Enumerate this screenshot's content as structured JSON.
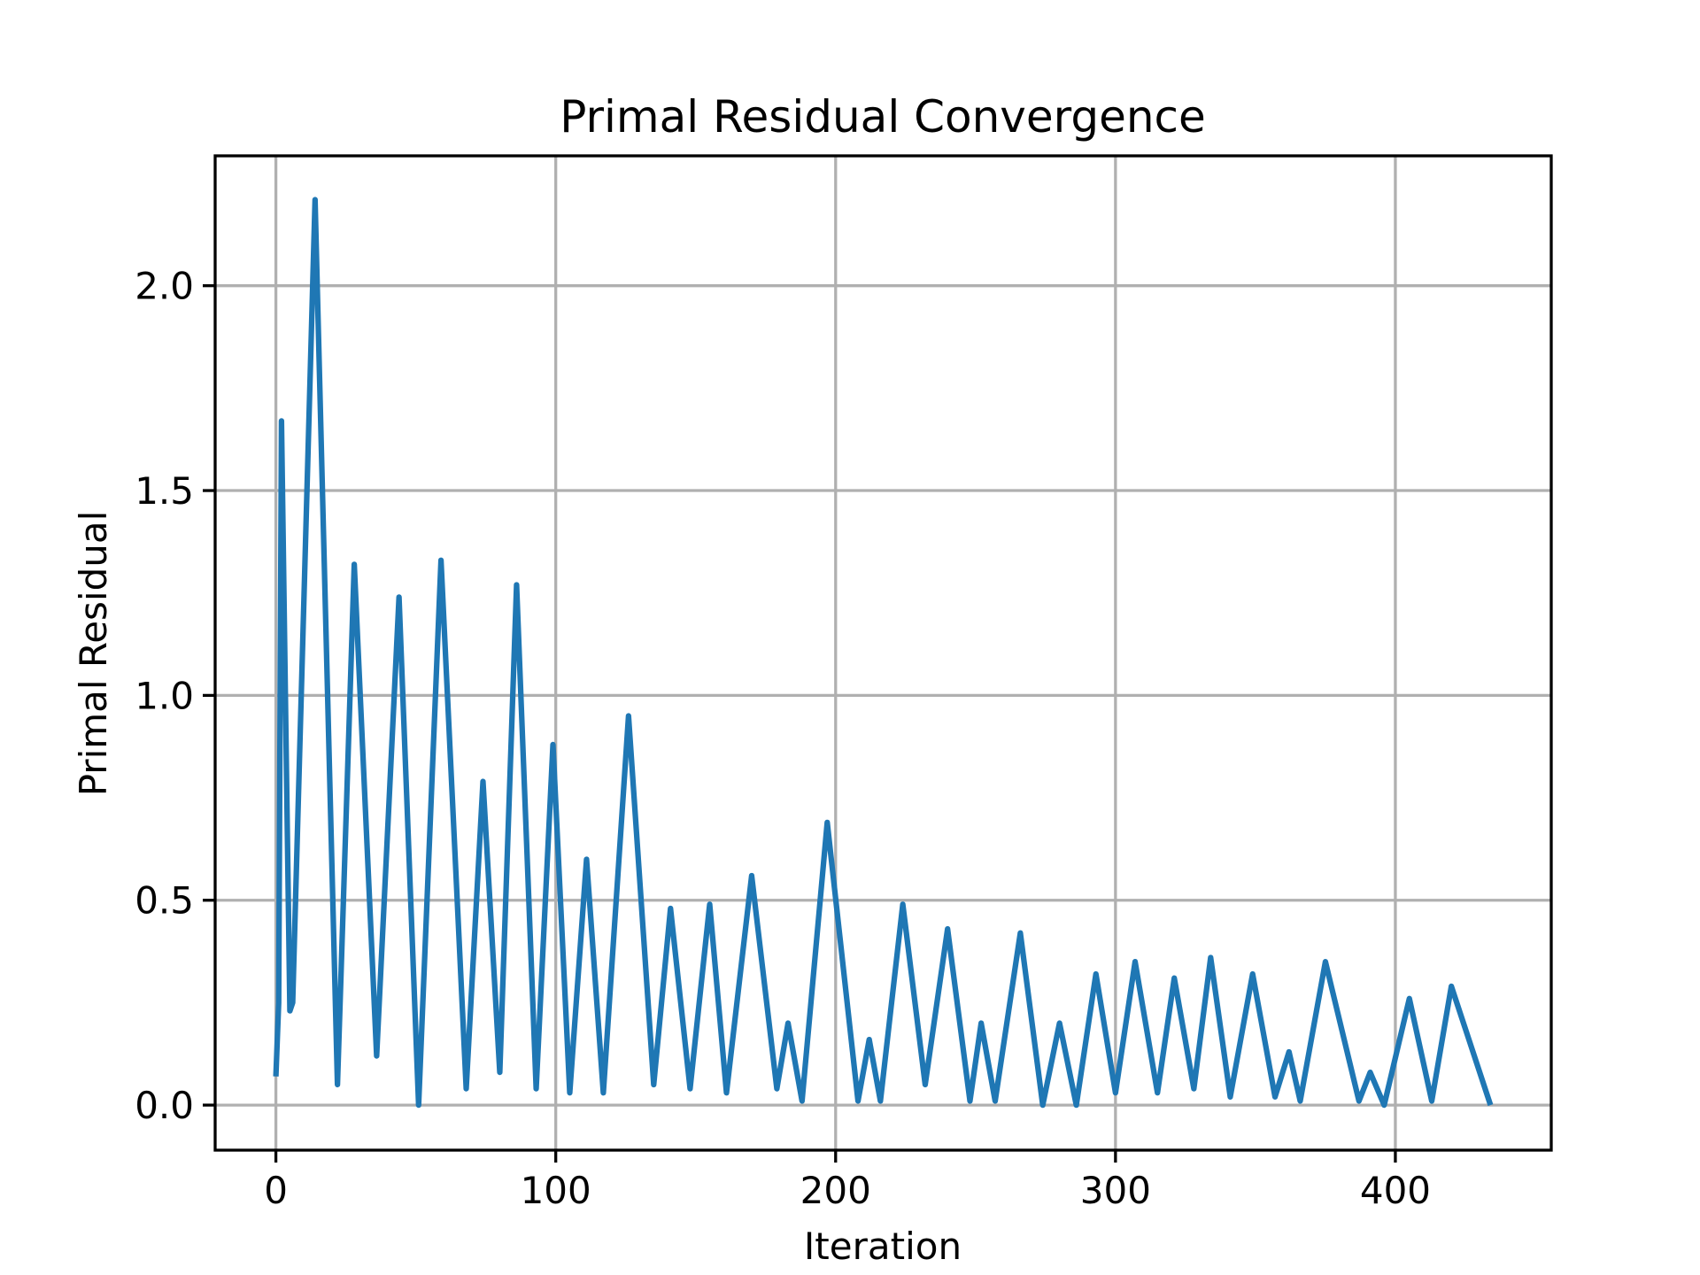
{
  "chart_data": {
    "type": "line",
    "title": "Primal Residual Convergence",
    "x_label": "Iteration",
    "y_label": "Primal Residual",
    "x": [
      0,
      1,
      2,
      5,
      6,
      14,
      22,
      28,
      36,
      44,
      51,
      59,
      68,
      74,
      80,
      86,
      93,
      99,
      105,
      111,
      117,
      126,
      135,
      141,
      148,
      155,
      161,
      170,
      179,
      183,
      188,
      197,
      208,
      212,
      216,
      224,
      232,
      240,
      248,
      252,
      257,
      266,
      274,
      280,
      286,
      293,
      300,
      307,
      315,
      321,
      328,
      334,
      341,
      349,
      357,
      362,
      366,
      375,
      387,
      391,
      396,
      405,
      413,
      420,
      434
    ],
    "values": [
      0.07,
      0.25,
      1.67,
      0.23,
      0.25,
      2.21,
      0.05,
      1.32,
      0.12,
      1.24,
      0.0,
      1.33,
      0.04,
      0.79,
      0.08,
      1.27,
      0.04,
      0.88,
      0.03,
      0.6,
      0.03,
      0.95,
      0.05,
      0.48,
      0.04,
      0.49,
      0.03,
      0.56,
      0.04,
      0.2,
      0.01,
      0.69,
      0.01,
      0.16,
      0.01,
      0.49,
      0.05,
      0.43,
      0.01,
      0.2,
      0.01,
      0.42,
      0.0,
      0.2,
      0.0,
      0.32,
      0.03,
      0.35,
      0.03,
      0.31,
      0.04,
      0.36,
      0.02,
      0.32,
      0.02,
      0.13,
      0.01,
      0.35,
      0.01,
      0.08,
      0.0,
      0.26,
      0.01,
      0.29,
      0.0
    ],
    "color": "#1f77b4",
    "xlim": [
      -21.7,
      455.7
    ],
    "xticks": [
      0,
      100,
      200,
      300,
      400
    ],
    "ylim": [
      -0.11,
      2.317
    ],
    "yticks": [
      {
        "value": 0,
        "label": "0.0"
      },
      {
        "value": 0.5,
        "label": "0.5"
      },
      {
        "value": 1,
        "label": "1.0"
      },
      {
        "value": 1.5,
        "label": "1.5"
      },
      {
        "value": 2,
        "label": "2.0"
      }
    ],
    "grid": true
  }
}
